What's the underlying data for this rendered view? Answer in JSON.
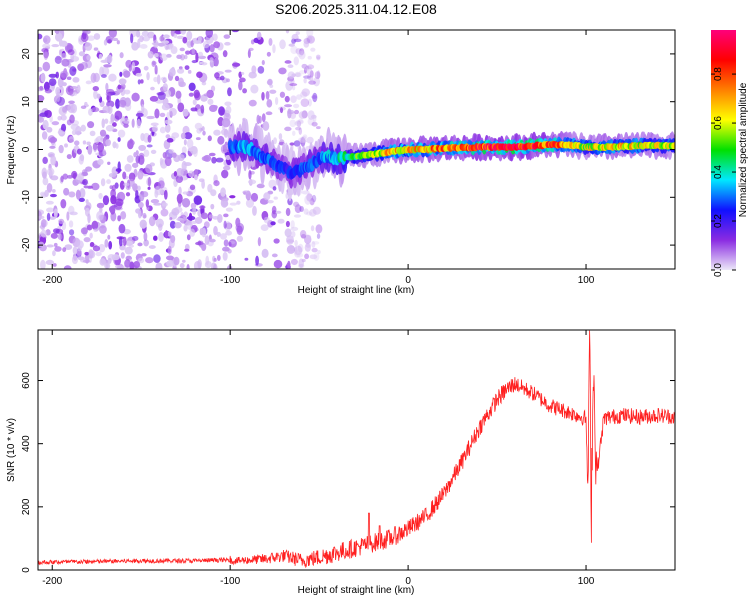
{
  "title": "S206.2025.311.04.12.E08",
  "colorbar": {
    "label": "Normalized spectral amplitude",
    "ticks": [
      "0.0",
      "0.2",
      "0.4",
      "0.6",
      "0.8"
    ],
    "tick_values": [
      0.0,
      0.2,
      0.4,
      0.6,
      0.8
    ],
    "range": [
      0.0,
      0.98
    ],
    "colors": [
      "#ece8f8",
      "#8a2be2",
      "#1010ff",
      "#00e8ff",
      "#00e000",
      "#ffff00",
      "#ff8000",
      "#ff0000",
      "#ff007a"
    ]
  },
  "chart_data": [
    {
      "type": "heatmap",
      "name": "spectrogram",
      "xlabel": "Height of straight line (km)",
      "ylabel": "Frequency (Hz)",
      "xlim": [
        -208,
        150
      ],
      "ylim": [
        -25,
        25
      ],
      "xticks": [
        -200,
        -100,
        0,
        100
      ],
      "xtick_labels": [
        "-200",
        "-100",
        "0",
        "100"
      ],
      "yticks": [
        -20,
        -10,
        0,
        10,
        20
      ],
      "ytick_labels": [
        "-20",
        "-10",
        "0",
        "10",
        "20"
      ],
      "noise_region_km": [
        -208,
        -50
      ],
      "signal_ridge": {
        "x": [
          -100,
          -90,
          -80,
          -72,
          -65,
          -58,
          -50,
          -45,
          -40,
          -35,
          -30,
          -20,
          -10,
          0,
          10,
          20,
          40,
          60,
          80,
          90,
          100,
          110,
          130,
          150
        ],
        "y": [
          0.5,
          0.5,
          -2,
          -3.5,
          -5,
          -4,
          -2,
          -1.5,
          -2,
          -1.5,
          -1.5,
          -1.0,
          -0.5,
          0,
          0,
          0.3,
          0.5,
          0.5,
          1.0,
          1.0,
          0.5,
          0.5,
          0.8,
          0.8
        ],
        "amplitude": [
          0.3,
          0.35,
          0.3,
          0.25,
          0.25,
          0.3,
          0.3,
          0.35,
          0.4,
          0.45,
          0.5,
          0.6,
          0.7,
          0.75,
          0.75,
          0.8,
          0.9,
          0.95,
          0.85,
          0.7,
          0.6,
          0.7,
          0.65,
          0.6
        ]
      }
    },
    {
      "type": "line",
      "name": "snr",
      "xlabel": "Height of straight line (km)",
      "ylabel": "SNR (10 * v/v)",
      "xlim": [
        -208,
        150
      ],
      "ylim": [
        0,
        760
      ],
      "xticks": [
        -200,
        -100,
        0,
        100
      ],
      "xtick_labels": [
        "-200",
        "-100",
        "0",
        "100"
      ],
      "yticks": [
        0,
        200,
        400,
        600
      ],
      "ytick_labels": [
        "0",
        "200",
        "400",
        "600"
      ],
      "color": "#ff2020",
      "series": [
        {
          "name": "SNR",
          "x": [
            -208,
            -180,
            -150,
            -120,
            -100,
            -80,
            -70,
            -60,
            -50,
            -40,
            -30,
            -20,
            -10,
            0,
            10,
            20,
            30,
            40,
            50,
            55,
            60,
            70,
            80,
            90,
            95,
            100,
            101,
            102,
            103,
            104,
            106,
            110,
            120,
            130,
            140,
            150
          ],
          "y": [
            20,
            22,
            25,
            25,
            28,
            35,
            45,
            30,
            40,
            55,
            70,
            85,
            100,
            130,
            170,
            240,
            340,
            450,
            540,
            570,
            590,
            560,
            520,
            500,
            490,
            480,
            250,
            720,
            200,
            650,
            300,
            480,
            490,
            485,
            490,
            485
          ]
        }
      ]
    }
  ]
}
